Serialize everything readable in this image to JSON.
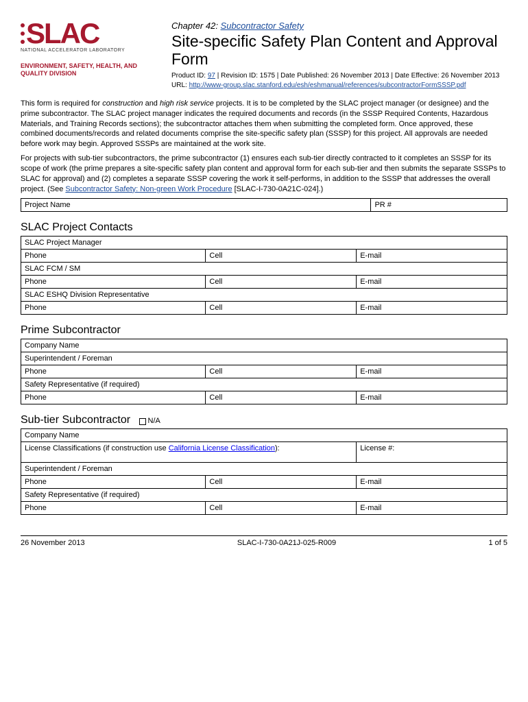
{
  "logo": {
    "text": "SLAC",
    "subtitle": "NATIONAL ACCELERATOR LABORATORY",
    "color": "#a6192e"
  },
  "division": "ENVIRONMENT, SAFETY, HEALTH, AND QUALITY DIVISION",
  "chapter": {
    "prefix": "Chapter 42: ",
    "link": "Subcontractor Safety"
  },
  "title": "Site-specific Safety Plan Content and Approval Form",
  "meta": {
    "product_label": "Product ID: ",
    "product_id": "97",
    "revision": " | Revision ID: 1575 | Date Published: 26 November 2013 | Date Effective: 26 November 2013",
    "url_label": "URL: ",
    "url": "http://www-group.slac.stanford.edu/esh/eshmanual/references/subcontractorFormSSSP.pdf"
  },
  "intro": {
    "p1a": "This form is required for ",
    "p1b": "construction",
    "p1c": " and ",
    "p1d": "high risk service",
    "p1e": " projects. It is to be completed by the SLAC project manager (or designee) and the prime subcontractor. The SLAC project manager indicates the required documents and records (in the SSSP Required Contents, Hazardous Materials, and Training Records sections); the subcontractor attaches them when submitting the completed form. Once approved, these combined documents/records and related documents comprise the site-specific safety plan (SSSP) for this project. All approvals are needed before work may begin. Approved SSSPs are maintained at the work site.",
    "p2a": "For projects with sub-tier subcontractors, the prime subcontractor (1) ensures each sub-tier directly contracted to it completes an SSSP for its scope of work (the prime prepares a site-specific safety plan content and approval form for each sub-tier and then submits the separate SSSPs to SLAC for approval) and (2) completes a separate SSSP covering the work it self-performs, in addition to the SSSP that addresses the overall project. (See ",
    "p2link": "Subcontractor Safety: Non-green Work Procedure",
    "p2b": " [SLAC-I-730-0A21C-024].)"
  },
  "labels": {
    "project_name": "Project Name",
    "pr_num": "PR #",
    "phone": "Phone",
    "cell": "Cell",
    "email": "E-mail",
    "company_name": "Company Name",
    "superintendent": "Superintendent / Foreman",
    "safety_rep": "Safety Representative (if required)",
    "license_a": "License Classifications (if construction use ",
    "license_link": "California License Classification",
    "license_b": "):",
    "license_num": "License #:",
    "na": "N/A"
  },
  "sections": {
    "contacts": {
      "title": "SLAC Project Contacts",
      "row1": "SLAC Project Manager",
      "row2": "SLAC FCM / SM",
      "row3": "SLAC ESHQ Division Representative"
    },
    "prime": {
      "title": "Prime Subcontractor"
    },
    "subtier": {
      "title": "Sub-tier Subcontractor"
    }
  },
  "footer": {
    "date": "26 November 2013",
    "docid": "SLAC-I-730-0A21J-025-R009",
    "page": "1 of 5"
  }
}
